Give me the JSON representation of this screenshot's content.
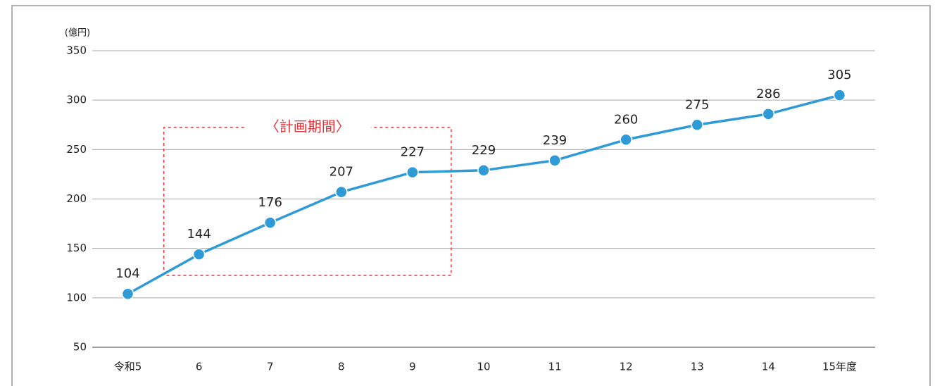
{
  "chart_data": {
    "type": "line",
    "y_unit": "(億円)",
    "annotation": "〈計画期間〉",
    "categories": [
      "令和5",
      "6",
      "7",
      "8",
      "9",
      "10",
      "11",
      "12",
      "13",
      "14",
      "15年度"
    ],
    "series": [
      {
        "color": "#2e9ad6",
        "values": [
          104,
          144,
          176,
          207,
          227,
          229,
          239,
          260,
          275,
          286,
          305
        ]
      }
    ],
    "ylim": [
      50,
      350
    ],
    "yticks": [
      50,
      100,
      150,
      200,
      250,
      300,
      350
    ],
    "grid": true
  }
}
